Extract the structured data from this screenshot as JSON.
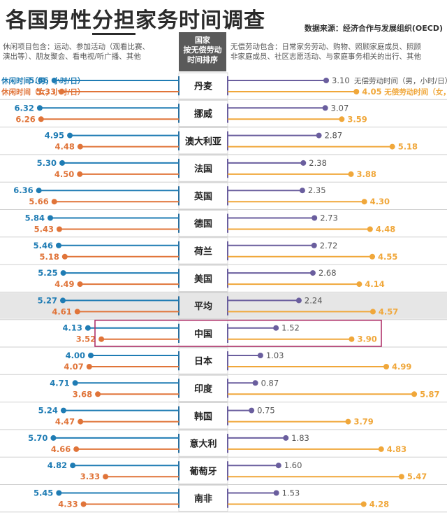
{
  "title": "各国男性分担家务时间调查",
  "title_pre": "各国男性",
  "title_mid": "分担",
  "title_post": "家务时间调查",
  "source": "数据来源：经济合作与发展组织(OECD)",
  "left_note_lines": [
    "休闲项目包含：运动、参加活动（观看比赛、",
    "演出等）、朋友聚会、看电视/听广播、其他"
  ],
  "right_note_lines": [
    "无偿劳动包含：日常家务劳动、购物、照顾家庭成员、照顾",
    "非家庭成员、社区志愿活动、与家庭事务相关的出行、其他"
  ],
  "center_header_lines": [
    "国家",
    "按无偿劳动",
    "时间排序"
  ],
  "colors": {
    "leisure_male": "#1f7cb4",
    "leisure_female": "#e07439",
    "unpaid_male": "#6a5e9e",
    "unpaid_female": "#f0a73a",
    "highlight_box": "#b0336b",
    "average_bg": "#e6e6e6"
  },
  "chart_data": {
    "type": "bar",
    "highlight_country": "中国",
    "average_label": "平均",
    "series": [
      {
        "name": "休闲时间（男，小时/日）",
        "side": "left",
        "values": [
          5.66,
          6.32,
          4.95,
          5.3,
          6.36,
          5.84,
          5.46,
          5.25,
          5.27,
          4.13,
          4.0,
          4.71,
          5.24,
          5.7,
          4.82,
          5.45
        ]
      },
      {
        "name": "休闲时间（女，小时/日）",
        "side": "left",
        "values": [
          5.33,
          6.26,
          4.48,
          4.5,
          5.66,
          5.43,
          5.18,
          4.49,
          4.61,
          3.52,
          4.07,
          3.68,
          4.47,
          4.66,
          3.33,
          4.33
        ]
      },
      {
        "name": "无偿劳动时间（男，小时/日）",
        "side": "right",
        "values": [
          3.1,
          3.07,
          2.87,
          2.38,
          2.35,
          2.73,
          2.72,
          2.68,
          2.24,
          1.52,
          1.03,
          0.87,
          0.75,
          1.83,
          1.6,
          1.53
        ]
      },
      {
        "name": "无偿劳动时间（女，小时/日）",
        "side": "right",
        "values": [
          4.05,
          3.59,
          5.18,
          3.88,
          4.3,
          4.48,
          4.55,
          4.14,
          4.57,
          3.9,
          4.99,
          5.87,
          3.79,
          4.83,
          5.47,
          4.28
        ]
      }
    ],
    "value_labels": [
      [
        "5.66",
        "5.33",
        "3.10",
        "4.05"
      ],
      [
        "6.32",
        "6.26",
        "3.07",
        "3.59"
      ],
      [
        "4.95",
        "4.48",
        "2.87",
        "5.18"
      ],
      [
        "5.30",
        "4.50",
        "2.38",
        "3.88"
      ],
      [
        "6.36",
        "5.66",
        "2.35",
        "4.30"
      ],
      [
        "5.84",
        "5.43",
        "2.73",
        "4.48"
      ],
      [
        "5.46",
        "5.18",
        "2.72",
        "4.55"
      ],
      [
        "5.25",
        "4.49",
        "2.68",
        "4.14"
      ],
      [
        "5.27",
        "4.61",
        "2.24",
        "4.57"
      ],
      [
        "4.13",
        "3.52",
        "1.52",
        "3.90"
      ],
      [
        "4.00",
        "4.07",
        "1.03",
        "4.99"
      ],
      [
        "4.71",
        "3.68",
        "0.87",
        "5.87"
      ],
      [
        "5.24",
        "4.47",
        "0.75",
        "3.79"
      ],
      [
        "5.70",
        "4.66",
        "1.83",
        "4.83"
      ],
      [
        "4.82",
        "3.33",
        "1.60",
        "5.47"
      ],
      [
        "5.45",
        "4.33",
        "1.53",
        "4.28"
      ]
    ],
    "categories": [
      "丹麦",
      "挪威",
      "澳大利亚",
      "法国",
      "英国",
      "德国",
      "荷兰",
      "美国",
      "平均",
      "中国",
      "日本",
      "印度",
      "韩国",
      "意大利",
      "葡萄牙",
      "南非"
    ]
  }
}
